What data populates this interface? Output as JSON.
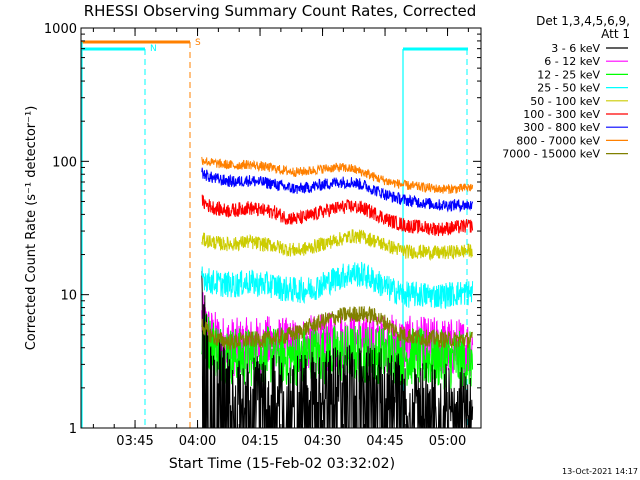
{
  "chart_data": {
    "type": "line",
    "title": "RHESSI Observing Summary Count Rates, Corrected",
    "xlabel": "Start Time (15-Feb-02 03:32:02)",
    "ylabel": "Corrected Count Rate (s⁻¹ detector⁻¹)",
    "yscale": "log",
    "ylim": [
      1,
      1000
    ],
    "xlim_minutes_since_start": [
      0,
      96
    ],
    "y_ticks": [
      {
        "value": 1,
        "label": "1"
      },
      {
        "value": 10,
        "label": "10"
      },
      {
        "value": 100,
        "label": "100"
      },
      {
        "value": 1000,
        "label": "1000"
      }
    ],
    "x_ticks": [
      {
        "minute": 12.97,
        "label": "03:45"
      },
      {
        "minute": 27.97,
        "label": "04:00"
      },
      {
        "minute": 42.97,
        "label": "04:15"
      },
      {
        "minute": 57.97,
        "label": "04:30"
      },
      {
        "minute": 72.97,
        "label": "04:45"
      },
      {
        "minute": 87.97,
        "label": "05:00"
      }
    ],
    "legend": {
      "header": [
        "Det 1,3,4,5,6,9,",
        "Att 1"
      ],
      "position": "right"
    },
    "series": [
      {
        "name": "3 - 6 keV",
        "color": "#000000",
        "points": [
          [
            29,
            9
          ],
          [
            31,
            5
          ],
          [
            33,
            3.2
          ],
          [
            36,
            2
          ],
          [
            40,
            2.1
          ],
          [
            45,
            2.3
          ],
          [
            50,
            2
          ],
          [
            55,
            2.2
          ],
          [
            60,
            2.4
          ],
          [
            65,
            2.5
          ],
          [
            70,
            2.5
          ],
          [
            75,
            2.2
          ],
          [
            80,
            2
          ],
          [
            85,
            1.9
          ],
          [
            90,
            1.8
          ],
          [
            94,
            1.7
          ]
        ]
      },
      {
        "name": "6 - 12 keV",
        "color": "#ff00ff",
        "points": [
          [
            29,
            6.5
          ],
          [
            31,
            4.8
          ],
          [
            34,
            4.2
          ],
          [
            38,
            4
          ],
          [
            42,
            4.1
          ],
          [
            46,
            4.2
          ],
          [
            50,
            4
          ],
          [
            55,
            4.2
          ],
          [
            60,
            4.4
          ],
          [
            65,
            4.5
          ],
          [
            70,
            4.4
          ],
          [
            75,
            4.3
          ],
          [
            80,
            4.1
          ],
          [
            85,
            4.1
          ],
          [
            90,
            4
          ],
          [
            94,
            4
          ]
        ]
      },
      {
        "name": "12 - 25 keV",
        "color": "#00ff00",
        "points": [
          [
            29,
            5
          ],
          [
            31,
            4.3
          ],
          [
            34,
            3.6
          ],
          [
            38,
            3.4
          ],
          [
            42,
            3.4
          ],
          [
            46,
            3.5
          ],
          [
            50,
            3.4
          ],
          [
            55,
            3.5
          ],
          [
            60,
            3.6
          ],
          [
            65,
            3.6
          ],
          [
            70,
            3.6
          ],
          [
            75,
            3.5
          ],
          [
            80,
            3.4
          ],
          [
            85,
            3.3
          ],
          [
            90,
            3.2
          ],
          [
            94,
            3.2
          ]
        ]
      },
      {
        "name": "25 - 50 keV",
        "color": "#00ffff",
        "points": [
          [
            29,
            14
          ],
          [
            31,
            12.5
          ],
          [
            34,
            12
          ],
          [
            37,
            11.8
          ],
          [
            40,
            12.4
          ],
          [
            43,
            12
          ],
          [
            46,
            11.8
          ],
          [
            49,
            11
          ],
          [
            52,
            10.8
          ],
          [
            55,
            11
          ],
          [
            58,
            12
          ],
          [
            62,
            13.5
          ],
          [
            65,
            14.5
          ],
          [
            68,
            14
          ],
          [
            71,
            12.5
          ],
          [
            74,
            11
          ],
          [
            78,
            10
          ],
          [
            82,
            10
          ],
          [
            86,
            9.8
          ],
          [
            90,
            10.2
          ],
          [
            94,
            10.4
          ]
        ]
      },
      {
        "name": "50 - 100 keV",
        "color": "#cccc00",
        "points": [
          [
            29,
            26
          ],
          [
            31,
            25
          ],
          [
            34,
            24
          ],
          [
            37,
            24
          ],
          [
            40,
            25
          ],
          [
            43,
            24
          ],
          [
            46,
            23.5
          ],
          [
            49,
            22
          ],
          [
            52,
            21.5
          ],
          [
            55,
            22.5
          ],
          [
            58,
            24
          ],
          [
            62,
            26
          ],
          [
            65,
            27.5
          ],
          [
            68,
            27
          ],
          [
            71,
            25
          ],
          [
            74,
            23
          ],
          [
            78,
            21
          ],
          [
            82,
            21
          ],
          [
            86,
            20.5
          ],
          [
            90,
            21
          ],
          [
            94,
            21.5
          ]
        ]
      },
      {
        "name": "100 - 300 keV",
        "color": "#ff0000",
        "points": [
          [
            29,
            50
          ],
          [
            31,
            46
          ],
          [
            34,
            43
          ],
          [
            37,
            43
          ],
          [
            40,
            45
          ],
          [
            43,
            43
          ],
          [
            46,
            42
          ],
          [
            49,
            38
          ],
          [
            52,
            37
          ],
          [
            55,
            39
          ],
          [
            58,
            42
          ],
          [
            62,
            45
          ],
          [
            65,
            46
          ],
          [
            68,
            44
          ],
          [
            71,
            40
          ],
          [
            74,
            36
          ],
          [
            78,
            33
          ],
          [
            82,
            32
          ],
          [
            86,
            31
          ],
          [
            90,
            32
          ],
          [
            94,
            33
          ]
        ]
      },
      {
        "name": "300 - 800 keV",
        "color": "#0000ff",
        "points": [
          [
            29,
            82
          ],
          [
            31,
            76
          ],
          [
            34,
            72
          ],
          [
            37,
            70
          ],
          [
            40,
            72
          ],
          [
            43,
            70
          ],
          [
            46,
            68
          ],
          [
            49,
            64
          ],
          [
            52,
            62
          ],
          [
            55,
            64
          ],
          [
            58,
            67
          ],
          [
            62,
            70
          ],
          [
            65,
            70
          ],
          [
            68,
            66
          ],
          [
            71,
            60
          ],
          [
            74,
            55
          ],
          [
            78,
            51
          ],
          [
            82,
            49
          ],
          [
            86,
            47
          ],
          [
            90,
            47
          ],
          [
            94,
            47
          ]
        ]
      },
      {
        "name": "800 - 7000 keV",
        "color": "#ff8000",
        "points": [
          [
            29,
            103
          ],
          [
            31,
            98
          ],
          [
            34,
            95
          ],
          [
            37,
            93
          ],
          [
            40,
            95
          ],
          [
            43,
            92
          ],
          [
            46,
            89
          ],
          [
            49,
            85
          ],
          [
            52,
            83
          ],
          [
            55,
            85
          ],
          [
            58,
            88
          ],
          [
            62,
            90
          ],
          [
            65,
            88
          ],
          [
            68,
            82
          ],
          [
            71,
            75
          ],
          [
            74,
            70
          ],
          [
            78,
            66
          ],
          [
            82,
            64
          ],
          [
            86,
            62
          ],
          [
            90,
            62
          ],
          [
            94,
            64
          ]
        ]
      },
      {
        "name": "7000 - 15000 keV",
        "color": "#808000",
        "points": [
          [
            29,
            6
          ],
          [
            31,
            5
          ],
          [
            33,
            4.6
          ],
          [
            36,
            4.4
          ],
          [
            40,
            4.6
          ],
          [
            44,
            4.6
          ],
          [
            48,
            4.8
          ],
          [
            52,
            5.2
          ],
          [
            55,
            5.8
          ],
          [
            58,
            6.3
          ],
          [
            61,
            6.8
          ],
          [
            64,
            7.1
          ],
          [
            67,
            7.2
          ],
          [
            70,
            7
          ],
          [
            73,
            6.2
          ],
          [
            76,
            5.2
          ],
          [
            80,
            4.8
          ],
          [
            84,
            4.7
          ],
          [
            88,
            4.6
          ],
          [
            92,
            4.6
          ],
          [
            94,
            4.6
          ]
        ]
      }
    ],
    "annotations": [
      {
        "label": "N",
        "color": "#00ffff"
      },
      {
        "label": "S",
        "color": "#ff8000"
      }
    ],
    "footer": "13-Oct-2021 14:17"
  }
}
